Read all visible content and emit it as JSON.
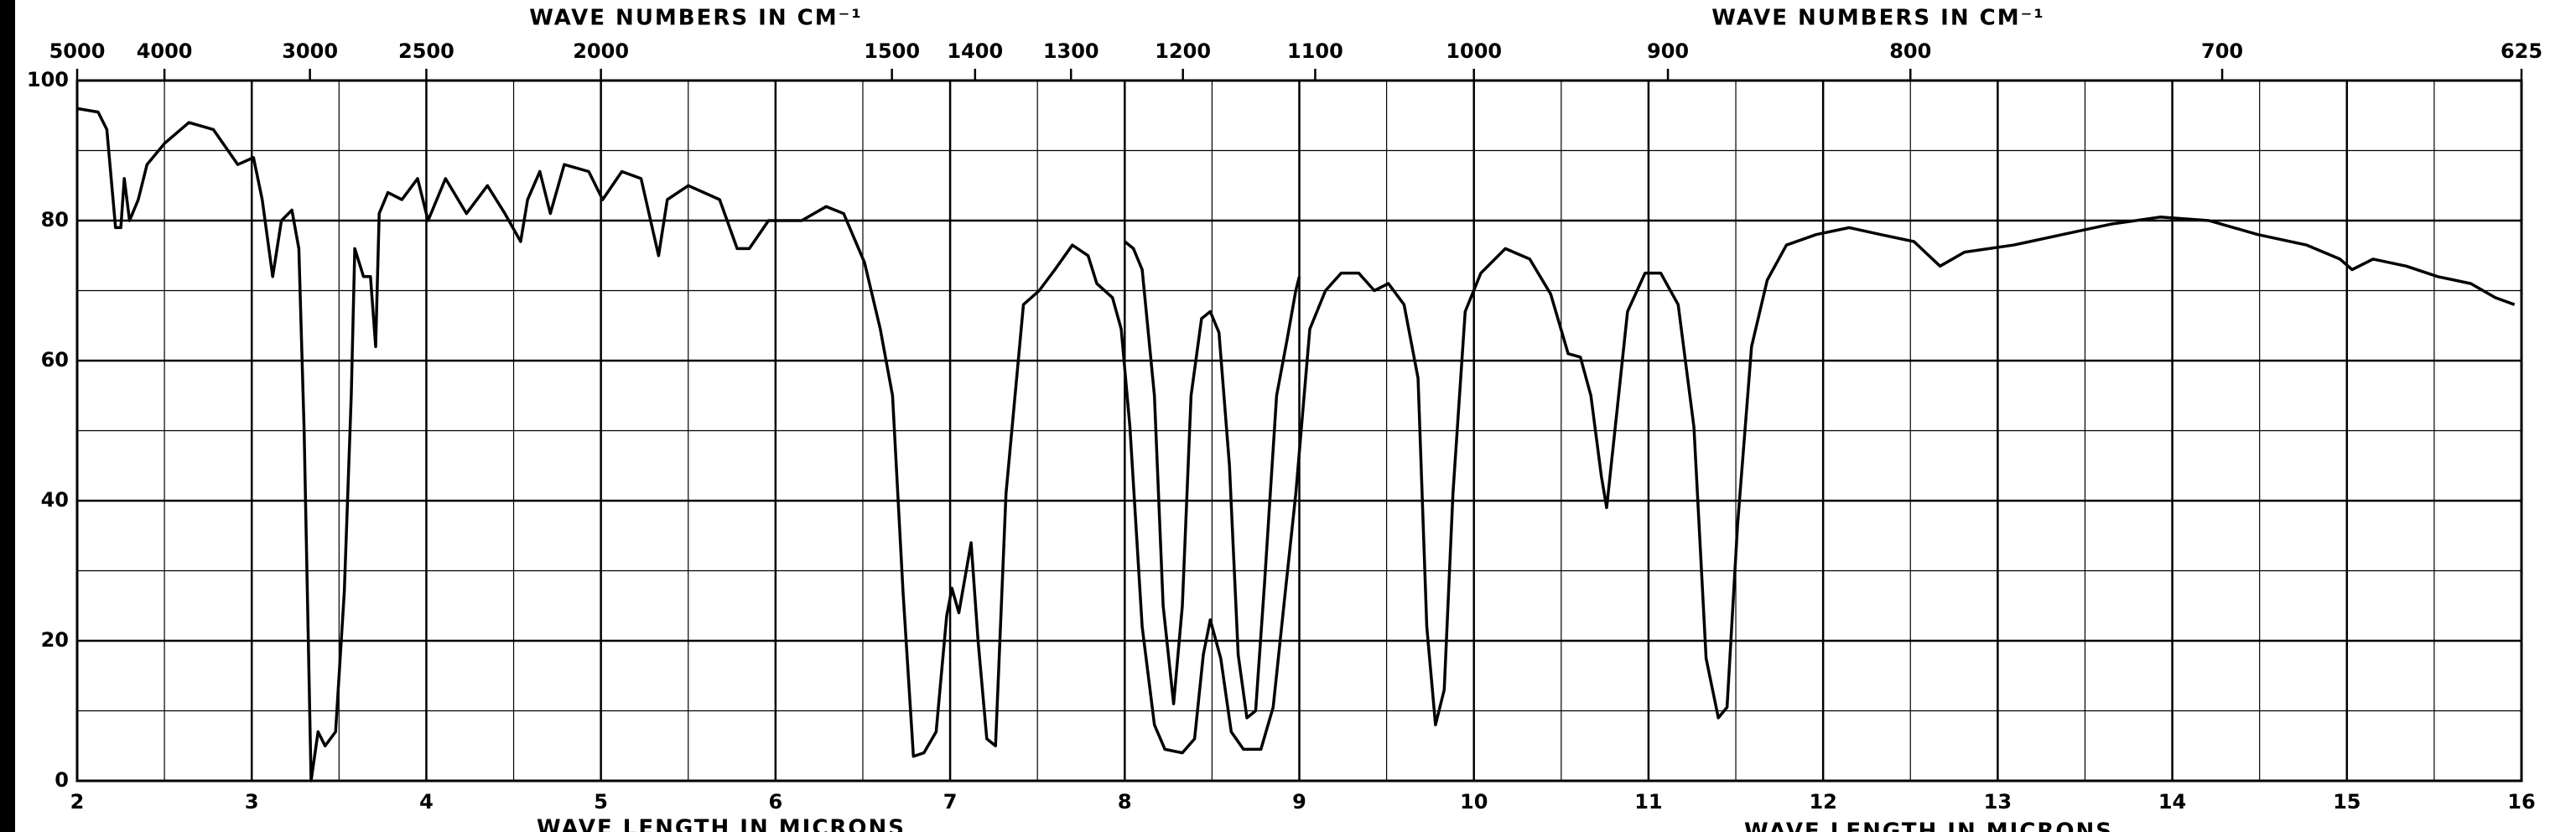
{
  "chart_data": {
    "type": "line",
    "x_axis_titles": [
      "WAVE NUMBERS IN CM⁻¹",
      "WAVE NUMBERS IN CM⁻¹"
    ],
    "x_bottom_titles": [
      "WAVE LENGTH IN MICRONS",
      "WAVE LENGTH IN MICRONS"
    ],
    "xlim": [
      2,
      16
    ],
    "xticks": [
      2,
      3,
      4,
      5,
      6,
      7,
      8,
      9,
      10,
      11,
      12,
      13,
      14,
      15,
      16
    ],
    "xminor": [
      2.5,
      3.5,
      4.5,
      5.5,
      6.5,
      7.5,
      8.5,
      9.5,
      10.5,
      11.5,
      12.5,
      13.5,
      14.5,
      15.5
    ],
    "x2ticks": [
      5000,
      4000,
      3000,
      2500,
      2000,
      1500,
      1400,
      1300,
      1200,
      1100,
      1000,
      900,
      800,
      700,
      625
    ],
    "ylim": [
      0,
      100
    ],
    "yticks": [
      0,
      20,
      40,
      60,
      80,
      100
    ],
    "yminor": [
      10,
      30,
      50,
      70,
      90
    ],
    "grid": true,
    "series": [
      {
        "color": "#000000",
        "x": [
          2.0,
          2.12,
          2.17,
          2.22,
          2.25,
          2.27,
          2.3,
          2.35,
          2.4,
          2.5,
          2.64,
          2.78,
          2.92,
          3.01,
          3.06,
          3.12,
          3.17,
          3.23,
          3.27,
          3.3,
          3.34,
          3.38,
          3.42,
          3.48,
          3.53,
          3.57,
          3.59,
          3.64,
          3.68,
          3.71,
          3.73,
          3.78,
          3.86,
          3.95,
          4.01,
          4.11,
          4.23,
          4.35,
          4.45,
          4.54,
          4.58,
          4.65,
          4.71,
          4.79,
          4.93,
          5.01,
          5.12,
          5.23,
          5.33,
          5.38,
          5.5,
          5.59,
          5.68,
          5.78,
          5.85,
          5.96,
          6.15,
          6.29,
          6.39,
          6.51,
          6.6,
          6.67,
          6.73,
          6.79,
          6.85,
          6.92,
          6.98,
          7.01,
          7.05,
          7.12,
          7.16,
          7.21,
          7.26,
          7.32,
          7.42,
          7.51,
          7.6,
          7.7,
          7.79,
          7.84,
          7.93,
          7.98,
          8.03,
          8.1,
          8.17,
          8.23,
          8.33,
          8.4,
          8.45,
          8.49,
          8.55,
          8.61,
          8.68,
          8.78,
          8.85,
          8.92,
          8.98,
          9.06,
          9.15,
          9.24,
          9.34,
          9.43,
          9.51,
          9.6,
          9.68,
          9.73,
          9.78,
          9.83,
          9.88,
          9.95,
          10.04,
          10.18,
          10.32,
          10.44,
          10.54,
          10.61,
          10.67,
          10.73,
          10.76,
          10.82,
          10.88,
          10.98,
          11.07,
          11.17,
          11.26,
          11.33,
          11.4,
          11.45,
          11.51,
          11.59,
          11.68,
          11.79,
          11.96,
          12.15,
          12.33,
          12.52,
          12.67,
          12.81,
          13.09,
          13.37,
          13.65,
          13.93,
          14.21,
          14.49,
          14.77,
          14.96,
          15.03,
          15.15,
          15.34,
          15.52,
          15.71,
          15.85,
          15.96
        ],
        "values": [
          96,
          95.5,
          93,
          79,
          79,
          86,
          80,
          83,
          88,
          91,
          94,
          93,
          88,
          89,
          83,
          72,
          80,
          81.5,
          76,
          50,
          0,
          7,
          5,
          7,
          27,
          55,
          76,
          72,
          72,
          62,
          81,
          84,
          83,
          86,
          80,
          86,
          81,
          85,
          81,
          77,
          83,
          87,
          81,
          88,
          87,
          83,
          87,
          86,
          75,
          83,
          85,
          84,
          83,
          76,
          76,
          80,
          80,
          82,
          81,
          74,
          64.5,
          55,
          27,
          3.5,
          4,
          7,
          23.5,
          27.5,
          24,
          34,
          20,
          6,
          5,
          41,
          68,
          70,
          73,
          76.5,
          75,
          71,
          69,
          64.5,
          50.5,
          22,
          8,
          4.5,
          4,
          6,
          18,
          23,
          17.5,
          7,
          4.5,
          4.5,
          10.5,
          27,
          41,
          64.5,
          70,
          72.5,
          72.5,
          70,
          71,
          68,
          57.5,
          22,
          8,
          13,
          41,
          67,
          72.5,
          76,
          74.5,
          69.5,
          61,
          60.5,
          55,
          43.5,
          39,
          53,
          67,
          72.5,
          72.5,
          68,
          50.5,
          17.5,
          9,
          10.5,
          36.5,
          62,
          71.5,
          76.5,
          78,
          79,
          78,
          77,
          73.5,
          75.5,
          76.5,
          78,
          79.5,
          80.5,
          80,
          78,
          76.5,
          74.5,
          73,
          74.5,
          73.5,
          72,
          71,
          69,
          68
        ]
      },
      {
        "color": "#000000",
        "x": [
          8.0,
          8.05,
          8.1,
          8.17,
          8.22,
          8.28,
          8.33,
          8.38,
          8.44,
          8.49,
          8.54,
          8.6,
          8.65,
          8.7,
          8.75,
          8.8,
          8.87,
          8.93,
          8.98,
          9.0
        ],
        "values": [
          77,
          76,
          73,
          55,
          25,
          11,
          25,
          55,
          66,
          67,
          64,
          45,
          18,
          9,
          10,
          28,
          55,
          63,
          70,
          72
        ]
      }
    ]
  }
}
